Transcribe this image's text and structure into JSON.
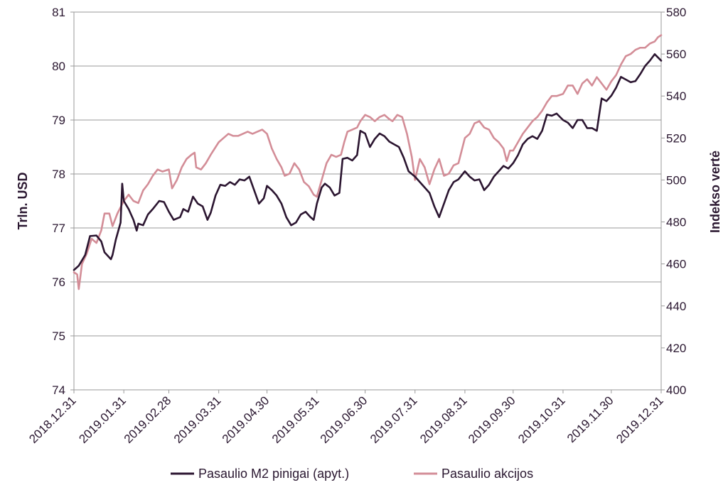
{
  "chart_data": {
    "type": "line",
    "title": "",
    "ylabel_left": "Trln. USD",
    "ylabel_right": "Indekso vertė",
    "y_left_range": [
      74,
      81
    ],
    "y_left_ticks": [
      "74",
      "75",
      "76",
      "77",
      "78",
      "79",
      "80",
      "81"
    ],
    "y_right_range": [
      400,
      580
    ],
    "y_right_ticks": [
      "400",
      "420",
      "440",
      "460",
      "480",
      "500",
      "520",
      "540",
      "560",
      "580"
    ],
    "x_range": [
      "2018.12.31",
      "2019.12.31"
    ],
    "x_tick_labels": [
      "2018.12.31",
      "2019.01.31",
      "2019.02.28",
      "2019.03.31",
      "2019.04.30",
      "2019.05.31",
      "2019.06.30",
      "2019.07.31",
      "2019.08.31",
      "2019.09.30",
      "2019.10.31",
      "2019.11.30",
      "2019.12.31"
    ],
    "grid": "horizontal",
    "legend_position": "bottom",
    "colors": {
      "m2": "#2b1530",
      "equity": "#d38d97",
      "grid": "#9a9a9a",
      "text": "#2a1730"
    },
    "series": [
      {
        "name": "Pasaulio M2 pinigai (apyt.)",
        "axis": "left",
        "points": [
          [
            "2018.12.31",
            76.22
          ],
          [
            "2019.01.03",
            76.3
          ],
          [
            "2019.01.07",
            76.5
          ],
          [
            "2019.01.10",
            76.85
          ],
          [
            "2019.01.14",
            76.86
          ],
          [
            "2019.01.17",
            76.75
          ],
          [
            "2019.01.19",
            76.55
          ],
          [
            "2019.01.23",
            76.42
          ],
          [
            "2019.01.24",
            76.5
          ],
          [
            "2019.01.26",
            76.78
          ],
          [
            "2019.01.29",
            77.1
          ],
          [
            "2019.01.30",
            77.82
          ],
          [
            "2019.01.31",
            77.5
          ],
          [
            "2019.02.03",
            77.35
          ],
          [
            "2019.02.06",
            77.15
          ],
          [
            "2019.02.08",
            76.95
          ],
          [
            "2019.02.09",
            77.08
          ],
          [
            "2019.02.12",
            77.05
          ],
          [
            "2019.02.15",
            77.25
          ],
          [
            "2019.02.18",
            77.35
          ],
          [
            "2019.02.22",
            77.5
          ],
          [
            "2019.02.25",
            77.48
          ],
          [
            "2019.02.28",
            77.3
          ],
          [
            "2019.03.03",
            77.15
          ],
          [
            "2019.03.07",
            77.2
          ],
          [
            "2019.03.09",
            77.35
          ],
          [
            "2019.03.12",
            77.3
          ],
          [
            "2019.03.15",
            77.58
          ],
          [
            "2019.03.18",
            77.45
          ],
          [
            "2019.03.21",
            77.4
          ],
          [
            "2019.03.24",
            77.15
          ],
          [
            "2019.03.26",
            77.28
          ],
          [
            "2019.03.29",
            77.6
          ],
          [
            "2019.04.01",
            77.8
          ],
          [
            "2019.04.04",
            77.78
          ],
          [
            "2019.04.07",
            77.85
          ],
          [
            "2019.04.10",
            77.8
          ],
          [
            "2019.04.13",
            77.9
          ],
          [
            "2019.04.16",
            77.88
          ],
          [
            "2019.04.19",
            77.95
          ],
          [
            "2019.04.22",
            77.7
          ],
          [
            "2019.04.25",
            77.45
          ],
          [
            "2019.04.28",
            77.55
          ],
          [
            "2019.04.30",
            77.78
          ],
          [
            "2019.05.03",
            77.7
          ],
          [
            "2019.05.06",
            77.6
          ],
          [
            "2019.05.09",
            77.45
          ],
          [
            "2019.05.12",
            77.2
          ],
          [
            "2019.05.15",
            77.05
          ],
          [
            "2019.05.18",
            77.1
          ],
          [
            "2019.05.21",
            77.25
          ],
          [
            "2019.05.24",
            77.3
          ],
          [
            "2019.05.27",
            77.2
          ],
          [
            "2019.05.29",
            77.15
          ],
          [
            "2019.05.31",
            77.45
          ],
          [
            "2019.06.03",
            77.75
          ],
          [
            "2019.06.05",
            77.82
          ],
          [
            "2019.06.08",
            77.75
          ],
          [
            "2019.06.11",
            77.6
          ],
          [
            "2019.06.14",
            77.65
          ],
          [
            "2019.06.16",
            78.28
          ],
          [
            "2019.06.19",
            78.3
          ],
          [
            "2019.06.22",
            78.25
          ],
          [
            "2019.06.25",
            78.35
          ],
          [
            "2019.06.27",
            78.8
          ],
          [
            "2019.06.30",
            78.75
          ],
          [
            "2019.07.03",
            78.5
          ],
          [
            "2019.07.06",
            78.65
          ],
          [
            "2019.07.09",
            78.75
          ],
          [
            "2019.07.12",
            78.7
          ],
          [
            "2019.07.15",
            78.6
          ],
          [
            "2019.07.18",
            78.55
          ],
          [
            "2019.07.21",
            78.5
          ],
          [
            "2019.07.24",
            78.3
          ],
          [
            "2019.07.27",
            78.05
          ],
          [
            "2019.07.31",
            77.95
          ],
          [
            "2019.08.03",
            77.85
          ],
          [
            "2019.08.06",
            77.75
          ],
          [
            "2019.08.09",
            77.65
          ],
          [
            "2019.08.12",
            77.4
          ],
          [
            "2019.08.15",
            77.2
          ],
          [
            "2019.08.18",
            77.45
          ],
          [
            "2019.08.21",
            77.7
          ],
          [
            "2019.08.24",
            77.85
          ],
          [
            "2019.08.27",
            77.9
          ],
          [
            "2019.08.31",
            78.05
          ],
          [
            "2019.09.03",
            77.95
          ],
          [
            "2019.09.06",
            77.88
          ],
          [
            "2019.09.09",
            77.9
          ],
          [
            "2019.09.12",
            77.7
          ],
          [
            "2019.09.15",
            77.8
          ],
          [
            "2019.09.18",
            77.95
          ],
          [
            "2019.09.21",
            78.05
          ],
          [
            "2019.09.24",
            78.15
          ],
          [
            "2019.09.27",
            78.1
          ],
          [
            "2019.09.30",
            78.2
          ],
          [
            "2019.10.03",
            78.35
          ],
          [
            "2019.10.06",
            78.55
          ],
          [
            "2019.10.09",
            78.65
          ],
          [
            "2019.10.12",
            78.7
          ],
          [
            "2019.10.15",
            78.65
          ],
          [
            "2019.10.18",
            78.8
          ],
          [
            "2019.10.21",
            79.1
          ],
          [
            "2019.10.24",
            79.08
          ],
          [
            "2019.10.27",
            79.12
          ],
          [
            "2019.10.31",
            79.0
          ],
          [
            "2019.11.03",
            78.95
          ],
          [
            "2019.11.06",
            78.85
          ],
          [
            "2019.11.09",
            79.0
          ],
          [
            "2019.11.12",
            79.0
          ],
          [
            "2019.11.15",
            78.85
          ],
          [
            "2019.11.18",
            78.85
          ],
          [
            "2019.11.21",
            78.8
          ],
          [
            "2019.11.24",
            79.4
          ],
          [
            "2019.11.27",
            79.35
          ],
          [
            "2019.11.30",
            79.45
          ],
          [
            "2019.12.03",
            79.6
          ],
          [
            "2019.12.06",
            79.8
          ],
          [
            "2019.12.09",
            79.75
          ],
          [
            "2019.12.12",
            79.7
          ],
          [
            "2019.12.15",
            79.72
          ],
          [
            "2019.12.18",
            79.85
          ],
          [
            "2019.12.21",
            80.0
          ],
          [
            "2019.12.24",
            80.1
          ],
          [
            "2019.12.27",
            80.22
          ],
          [
            "2019.12.31",
            80.1
          ]
        ]
      },
      {
        "name": "Pasaulio akcijos",
        "axis": "right",
        "points": [
          [
            "2018.12.31",
            456
          ],
          [
            "2019.01.02",
            455
          ],
          [
            "2019.01.03",
            448
          ],
          [
            "2019.01.05",
            460
          ],
          [
            "2019.01.08",
            465
          ],
          [
            "2019.01.11",
            472
          ],
          [
            "2019.01.14",
            470
          ],
          [
            "2019.01.17",
            476
          ],
          [
            "2019.01.19",
            484
          ],
          [
            "2019.01.22",
            484
          ],
          [
            "2019.01.24",
            478
          ],
          [
            "2019.01.27",
            484
          ],
          [
            "2019.01.31",
            490
          ],
          [
            "2019.02.03",
            493
          ],
          [
            "2019.02.06",
            490
          ],
          [
            "2019.02.09",
            489
          ],
          [
            "2019.02.12",
            495
          ],
          [
            "2019.02.15",
            498
          ],
          [
            "2019.02.18",
            502
          ],
          [
            "2019.02.21",
            505
          ],
          [
            "2019.02.24",
            504
          ],
          [
            "2019.02.28",
            505
          ],
          [
            "2019.03.02",
            496
          ],
          [
            "2019.03.05",
            500
          ],
          [
            "2019.03.08",
            506
          ],
          [
            "2019.03.11",
            510
          ],
          [
            "2019.03.14",
            512
          ],
          [
            "2019.03.16",
            513
          ],
          [
            "2019.03.17",
            506
          ],
          [
            "2019.03.20",
            505
          ],
          [
            "2019.03.23",
            508
          ],
          [
            "2019.03.26",
            512
          ],
          [
            "2019.03.31",
            518
          ],
          [
            "2019.04.03",
            520
          ],
          [
            "2019.04.06",
            522
          ],
          [
            "2019.04.09",
            521
          ],
          [
            "2019.04.12",
            521
          ],
          [
            "2019.04.15",
            522
          ],
          [
            "2019.04.18",
            523
          ],
          [
            "2019.04.21",
            522
          ],
          [
            "2019.04.24",
            523
          ],
          [
            "2019.04.27",
            524
          ],
          [
            "2019.04.30",
            522
          ],
          [
            "2019.05.03",
            515
          ],
          [
            "2019.05.06",
            510
          ],
          [
            "2019.05.09",
            506
          ],
          [
            "2019.05.11",
            502
          ],
          [
            "2019.05.14",
            503
          ],
          [
            "2019.05.17",
            508
          ],
          [
            "2019.05.20",
            505
          ],
          [
            "2019.05.23",
            499
          ],
          [
            "2019.05.26",
            497
          ],
          [
            "2019.05.29",
            493
          ],
          [
            "2019.05.31",
            492
          ],
          [
            "2019.06.03",
            500
          ],
          [
            "2019.06.06",
            508
          ],
          [
            "2019.06.09",
            512
          ],
          [
            "2019.06.12",
            511
          ],
          [
            "2019.06.15",
            512
          ],
          [
            "2019.06.17",
            518
          ],
          [
            "2019.06.19",
            523
          ],
          [
            "2019.06.22",
            524
          ],
          [
            "2019.06.25",
            525
          ],
          [
            "2019.06.27",
            528
          ],
          [
            "2019.06.30",
            531
          ],
          [
            "2019.07.03",
            530
          ],
          [
            "2019.07.06",
            528
          ],
          [
            "2019.07.09",
            530
          ],
          [
            "2019.07.12",
            531
          ],
          [
            "2019.07.15",
            529
          ],
          [
            "2019.07.17",
            528
          ],
          [
            "2019.07.20",
            531
          ],
          [
            "2019.07.23",
            530
          ],
          [
            "2019.07.26",
            522
          ],
          [
            "2019.07.29",
            511
          ],
          [
            "2019.07.31",
            500
          ],
          [
            "2019.08.03",
            510
          ],
          [
            "2019.08.06",
            506
          ],
          [
            "2019.08.09",
            498
          ],
          [
            "2019.08.12",
            505
          ],
          [
            "2019.08.15",
            510
          ],
          [
            "2019.08.18",
            502
          ],
          [
            "2019.08.21",
            503
          ],
          [
            "2019.08.24",
            507
          ],
          [
            "2019.08.27",
            508
          ],
          [
            "2019.08.31",
            520
          ],
          [
            "2019.09.03",
            522
          ],
          [
            "2019.09.06",
            527
          ],
          [
            "2019.09.09",
            528
          ],
          [
            "2019.09.12",
            525
          ],
          [
            "2019.09.15",
            524
          ],
          [
            "2019.09.18",
            520
          ],
          [
            "2019.09.21",
            518
          ],
          [
            "2019.09.24",
            515
          ],
          [
            "2019.09.26",
            509
          ],
          [
            "2019.09.28",
            514
          ],
          [
            "2019.09.30",
            514
          ],
          [
            "2019.10.03",
            518
          ],
          [
            "2019.10.06",
            522
          ],
          [
            "2019.10.09",
            525
          ],
          [
            "2019.10.12",
            528
          ],
          [
            "2019.10.15",
            530
          ],
          [
            "2019.10.18",
            533
          ],
          [
            "2019.10.21",
            537
          ],
          [
            "2019.10.24",
            540
          ],
          [
            "2019.10.27",
            540
          ],
          [
            "2019.10.31",
            541
          ],
          [
            "2019.11.03",
            545
          ],
          [
            "2019.11.06",
            545
          ],
          [
            "2019.11.09",
            541
          ],
          [
            "2019.11.12",
            546
          ],
          [
            "2019.11.15",
            548
          ],
          [
            "2019.11.18",
            545
          ],
          [
            "2019.11.21",
            549
          ],
          [
            "2019.11.24",
            546
          ],
          [
            "2019.11.27",
            543
          ],
          [
            "2019.11.30",
            547
          ],
          [
            "2019.12.03",
            550
          ],
          [
            "2019.12.06",
            555
          ],
          [
            "2019.12.09",
            559
          ],
          [
            "2019.12.12",
            560
          ],
          [
            "2019.12.15",
            562
          ],
          [
            "2019.12.18",
            563
          ],
          [
            "2019.12.21",
            563
          ],
          [
            "2019.12.24",
            565
          ],
          [
            "2019.12.27",
            566
          ],
          [
            "2019.12.29",
            568
          ],
          [
            "2019.12.31",
            569
          ]
        ]
      }
    ]
  }
}
